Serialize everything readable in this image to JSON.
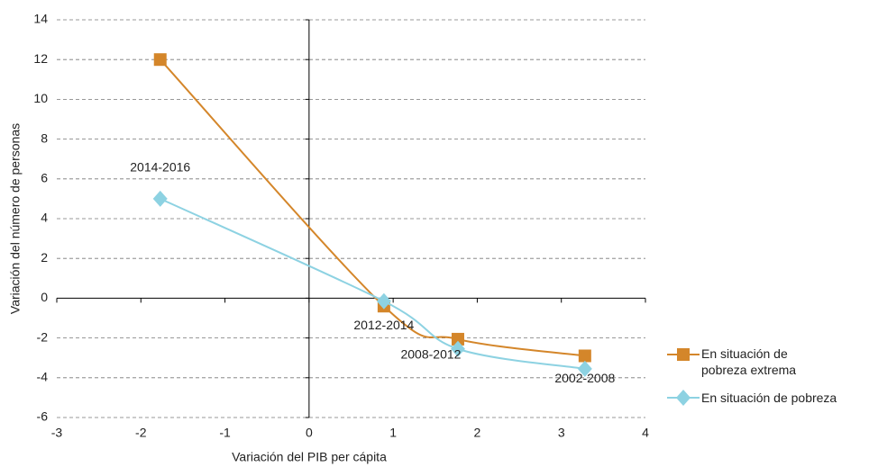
{
  "chart_data": {
    "type": "line",
    "x_label": "Variación del PIB per cápita",
    "y_label": "Variación del número de personas",
    "point_labels": [
      "2014-2016",
      "2012-2014",
      "2008-2012",
      "2002-2008"
    ],
    "series": [
      {
        "name": "En situación de pobreza extrema",
        "color": "#d4862a",
        "marker": "square",
        "x": [
          -1.77,
          0.89,
          1.77,
          3.28
        ],
        "values": [
          12.0,
          -0.4,
          -2.06,
          -2.9
        ]
      },
      {
        "name": "En situación de pobreza",
        "color": "#8dd2e2",
        "marker": "diamond",
        "x": [
          -1.77,
          0.89,
          1.77,
          3.28
        ],
        "values": [
          5.0,
          -0.15,
          -2.55,
          -3.55
        ]
      }
    ],
    "xlim": [
      -3,
      4
    ],
    "xticks": [
      -3,
      -2,
      -1,
      0,
      1,
      2,
      3,
      4
    ],
    "ylim": [
      -6,
      14
    ],
    "yticks": [
      -6,
      -4,
      -2,
      0,
      2,
      4,
      6,
      8,
      10,
      12,
      14
    ],
    "grid": true
  }
}
